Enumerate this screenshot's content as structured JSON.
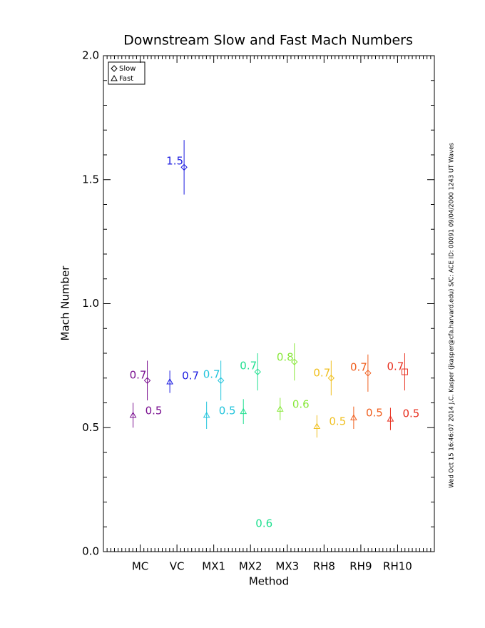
{
  "chart_data": {
    "type": "errorbar",
    "title": "Downstream Slow and Fast Mach Numbers",
    "x_label": "Method",
    "y_label": "Mach Number",
    "side_note": "Wed Oct 15 16:46:07 2014   J.C. Kasper (jkasper@cfa.harvard.edu)   S/C: ACE ID: 00091 09/04/2000   1243 UT Waves",
    "categories": [
      "MC",
      "VC",
      "MX1",
      "MX2",
      "MX3",
      "RH8",
      "RH9",
      "RH10"
    ],
    "colors": [
      "#7a1090",
      "#1c1ce0",
      "#22c4dc",
      "#20e090",
      "#88e83a",
      "#f0c020",
      "#f06020",
      "#e83020"
    ],
    "ylim": [
      0,
      2
    ],
    "yticks": [
      {
        "value": 0,
        "label": "0.0"
      },
      {
        "value": 0.5,
        "label": "0.5"
      },
      {
        "value": 1,
        "label": "1.0"
      },
      {
        "value": 1.5,
        "label": "1.5"
      },
      {
        "value": 2,
        "label": "2.0"
      }
    ],
    "legend": "top-left",
    "series": [
      {
        "name": "Slow",
        "markers": [
          "diamond",
          "diamond",
          "diamond",
          "diamond",
          "diamond",
          "diamond",
          "diamond",
          "square"
        ],
        "values": [
          0.69,
          1.55,
          0.69,
          0.725,
          0.765,
          0.7,
          0.72,
          0.725
        ],
        "errors": [
          0.08,
          0.11,
          0.08,
          0.075,
          0.075,
          0.07,
          0.075,
          0.075
        ],
        "value_labels": [
          "0.7",
          "1.5",
          "0.7",
          "0.7",
          "0.8",
          "0.7",
          "0.7",
          "0.7"
        ]
      },
      {
        "name": "Fast",
        "markers": [
          "triangle",
          "triangle",
          "triangle",
          "triangle",
          "triangle",
          "triangle",
          "triangle",
          "triangle"
        ],
        "values": [
          0.55,
          0.685,
          0.55,
          0.565,
          0.575,
          0.505,
          0.54,
          0.535
        ],
        "errors": [
          0.05,
          0.045,
          0.055,
          0.05,
          0.045,
          0.045,
          0.045,
          0.045
        ],
        "value_labels": [
          "0.5",
          "0.7",
          "0.5",
          "0.6",
          "0.6",
          "0.5",
          "0.5",
          "0.5"
        ]
      }
    ]
  }
}
